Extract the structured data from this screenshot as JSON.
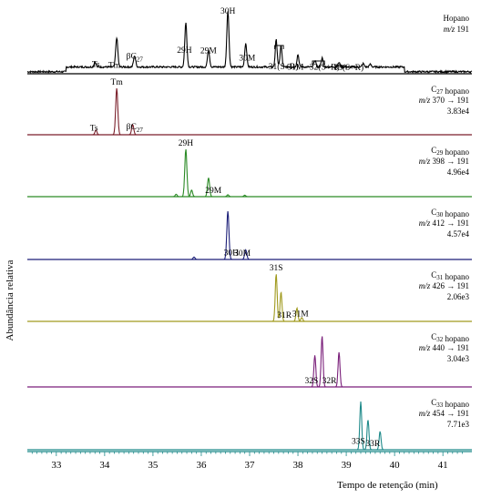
{
  "chart_data": {
    "type": "line",
    "xlabel": "Tempo de retenção (min)",
    "ylabel": "Abundância relativa",
    "xlim": [
      32.4,
      41.6
    ],
    "xticks": [
      33,
      34,
      35,
      36,
      37,
      38,
      39,
      40,
      41
    ],
    "grid": false,
    "panels": [
      {
        "title": "Hopano",
        "title_parts": [
          {
            "t": "Hopano"
          }
        ],
        "line2": "m/z 191",
        "line3": "",
        "color": "#000000",
        "baseline": 0.12,
        "noise": 0.03,
        "peaks": [
          {
            "x": 33.8,
            "h": 0.09,
            "w": 0.02
          },
          {
            "x": 34.25,
            "h": 0.52,
            "w": 0.022
          },
          {
            "x": 34.62,
            "h": 0.2,
            "w": 0.022
          },
          {
            "x": 35.68,
            "h": 0.78,
            "w": 0.022
          },
          {
            "x": 36.15,
            "h": 0.3,
            "w": 0.022
          },
          {
            "x": 36.55,
            "h": 1.0,
            "w": 0.022
          },
          {
            "x": 36.92,
            "h": 0.42,
            "w": 0.022
          },
          {
            "x": 37.55,
            "h": 0.48,
            "w": 0.02
          },
          {
            "x": 37.65,
            "h": 0.38,
            "w": 0.02
          },
          {
            "x": 38.0,
            "h": 0.22,
            "w": 0.02
          },
          {
            "x": 38.35,
            "h": 0.12,
            "w": 0.02
          },
          {
            "x": 38.5,
            "h": 0.16,
            "w": 0.02
          },
          {
            "x": 38.85,
            "h": 0.08,
            "w": 0.02
          },
          {
            "x": 39.35,
            "h": 0.06,
            "w": 0.02
          },
          {
            "x": 39.5,
            "h": 0.05,
            "w": 0.02
          }
        ],
        "labels": [
          {
            "x": 33.82,
            "text": "Ts"
          },
          {
            "x": 34.2,
            "text": "Tm"
          },
          {
            "x": 34.62,
            "text": "βC",
            "sub": "27"
          },
          {
            "x": 35.65,
            "text": "29H"
          },
          {
            "x": 36.15,
            "text": "29M"
          },
          {
            "x": 36.55,
            "text": "30H"
          },
          {
            "x": 36.95,
            "text": "30M"
          },
          {
            "x": 37.7,
            "text": "31(S+R)"
          },
          {
            "x": 37.95,
            "text": "31M"
          },
          {
            "x": 38.55,
            "text": "32(S+R)"
          },
          {
            "x": 39.05,
            "text": "33(S+R)"
          }
        ]
      },
      {
        "title": "C27 hopano",
        "title_parts": [
          {
            "t": "C"
          },
          {
            "t": "27",
            "sub": true
          },
          {
            "t": " hopano"
          }
        ],
        "line2": "m/z 370 → 191",
        "line3": "3.83e4",
        "color": "#7a1f2a",
        "baseline": 0.0,
        "noise": 0.0,
        "peaks": [
          {
            "x": 33.82,
            "h": 0.1,
            "w": 0.02
          },
          {
            "x": 34.25,
            "h": 1.0,
            "w": 0.022
          },
          {
            "x": 34.58,
            "h": 0.22,
            "w": 0.022
          }
        ],
        "labels": [
          {
            "x": 33.78,
            "text": "Ts"
          },
          {
            "x": 34.25,
            "text": "Tm"
          },
          {
            "x": 34.62,
            "text": "βC",
            "sub": "27"
          }
        ]
      },
      {
        "title": "C29 hopano",
        "title_parts": [
          {
            "t": "C"
          },
          {
            "t": "29",
            "sub": true
          },
          {
            "t": " hopano"
          }
        ],
        "line2": "m/z 398 → 191",
        "line3": "4.96e4",
        "color": "#2a8a25",
        "baseline": 0.0,
        "noise": 0.0,
        "peaks": [
          {
            "x": 35.48,
            "h": 0.05,
            "w": 0.02
          },
          {
            "x": 35.68,
            "h": 1.0,
            "w": 0.022
          },
          {
            "x": 35.8,
            "h": 0.14,
            "w": 0.02
          },
          {
            "x": 36.15,
            "h": 0.4,
            "w": 0.022
          },
          {
            "x": 36.55,
            "h": 0.04,
            "w": 0.02
          },
          {
            "x": 36.9,
            "h": 0.03,
            "w": 0.02
          }
        ],
        "labels": [
          {
            "x": 35.68,
            "text": "29H"
          },
          {
            "x": 36.25,
            "text": "29M"
          }
        ]
      },
      {
        "title": "C30 hopano",
        "title_parts": [
          {
            "t": "C"
          },
          {
            "t": "30",
            "sub": true
          },
          {
            "t": " hopano"
          }
        ],
        "line2": "m/z 412 → 191",
        "line3": "4.57e4",
        "color": "#1c1f78",
        "baseline": 0.0,
        "noise": 0.0,
        "peaks": [
          {
            "x": 35.85,
            "h": 0.05,
            "w": 0.02
          },
          {
            "x": 36.55,
            "h": 1.0,
            "w": 0.022
          },
          {
            "x": 36.92,
            "h": 0.2,
            "w": 0.022
          }
        ],
        "labels": [
          {
            "x": 36.62,
            "text": "30H"
          },
          {
            "x": 36.85,
            "text": "30M"
          }
        ]
      },
      {
        "title": "C31 hopano",
        "title_parts": [
          {
            "t": "C"
          },
          {
            "t": "31",
            "sub": true
          },
          {
            "t": " hopano"
          }
        ],
        "line2": "m/z 426 → 191",
        "line3": "2.06e3",
        "color": "#a09a1e",
        "baseline": 0.0,
        "noise": 0.0,
        "peaks": [
          {
            "x": 37.55,
            "h": 1.0,
            "w": 0.02
          },
          {
            "x": 37.65,
            "h": 0.62,
            "w": 0.02
          },
          {
            "x": 37.98,
            "h": 0.28,
            "w": 0.02
          },
          {
            "x": 38.08,
            "h": 0.08,
            "w": 0.02
          }
        ],
        "labels": [
          {
            "x": 37.55,
            "text": "31S"
          },
          {
            "x": 37.72,
            "text": "31R"
          },
          {
            "x": 38.05,
            "text": "31M"
          }
        ]
      },
      {
        "title": "C32 hopano",
        "title_parts": [
          {
            "t": "C"
          },
          {
            "t": "32",
            "sub": true
          },
          {
            "t": " hopano"
          }
        ],
        "line2": "m/z 440 → 191",
        "line3": "3.04e3",
        "color": "#7a1f7a",
        "baseline": 0.0,
        "noise": 0.0,
        "peaks": [
          {
            "x": 38.35,
            "h": 0.62,
            "w": 0.02
          },
          {
            "x": 38.5,
            "h": 1.0,
            "w": 0.02
          },
          {
            "x": 38.85,
            "h": 0.68,
            "w": 0.02
          }
        ],
        "labels": [
          {
            "x": 38.28,
            "text": "32S"
          },
          {
            "x": 38.65,
            "text": "32R"
          }
        ]
      },
      {
        "title": "C33 hopano",
        "title_parts": [
          {
            "t": "C"
          },
          {
            "t": "33",
            "sub": true
          },
          {
            "t": " hopano"
          }
        ],
        "line2": "m/z 454 → 191",
        "line3": "7.71e3",
        "color": "#1f8a8a",
        "baseline": 0.0,
        "noise": 0.0,
        "peaks": [
          {
            "x": 39.3,
            "h": 1.0,
            "w": 0.02
          },
          {
            "x": 39.45,
            "h": 0.62,
            "w": 0.02
          },
          {
            "x": 39.7,
            "h": 0.38,
            "w": 0.02
          }
        ],
        "labels": [
          {
            "x": 39.25,
            "text": "33S"
          },
          {
            "x": 39.55,
            "text": "33R"
          }
        ]
      }
    ]
  }
}
